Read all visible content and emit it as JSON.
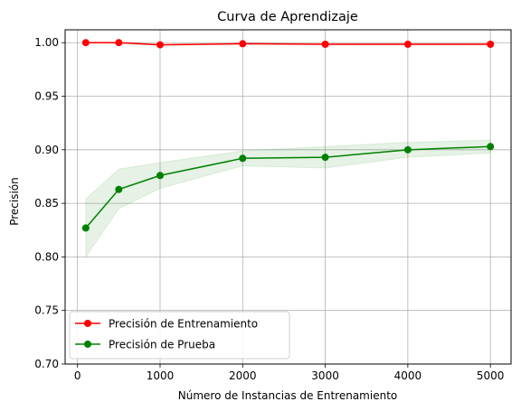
{
  "chart_data": {
    "type": "line",
    "title": "Curva de Aprendizaje",
    "xlabel": "Número de Instancias de Entrenamiento",
    "ylabel": "Precisión",
    "xlim": [
      -150,
      5250
    ],
    "ylim": [
      0.7,
      1.012
    ],
    "xticks": [
      0,
      1000,
      2000,
      3000,
      4000,
      5000
    ],
    "yticks": [
      0.7,
      0.75,
      0.8,
      0.85,
      0.9,
      0.95,
      1.0
    ],
    "ytick_labels": [
      "0.70",
      "0.75",
      "0.80",
      "0.85",
      "0.90",
      "0.95",
      "1.00"
    ],
    "grid": true,
    "legend_position": "lower-left",
    "x": [
      100,
      500,
      1000,
      2000,
      3000,
      4000,
      5000
    ],
    "series": [
      {
        "name": "Precisión de Entrenamiento",
        "color": "#ff0000",
        "values": [
          1.0,
          1.0,
          0.998,
          0.999,
          0.9985,
          0.9985,
          0.9985
        ],
        "band_lower": [
          0.9995,
          0.9995,
          0.9975,
          0.9985,
          0.998,
          0.998,
          0.998
        ],
        "band_upper": [
          1.0005,
          1.0005,
          0.9985,
          0.9995,
          0.999,
          0.999,
          0.999
        ]
      },
      {
        "name": "Precisión de Prueba",
        "color": "#008000",
        "values": [
          0.827,
          0.863,
          0.876,
          0.892,
          0.893,
          0.9,
          0.903
        ],
        "band_lower": [
          0.8,
          0.845,
          0.864,
          0.885,
          0.883,
          0.893,
          0.897
        ],
        "band_upper": [
          0.854,
          0.882,
          0.888,
          0.899,
          0.903,
          0.907,
          0.909
        ]
      }
    ]
  }
}
